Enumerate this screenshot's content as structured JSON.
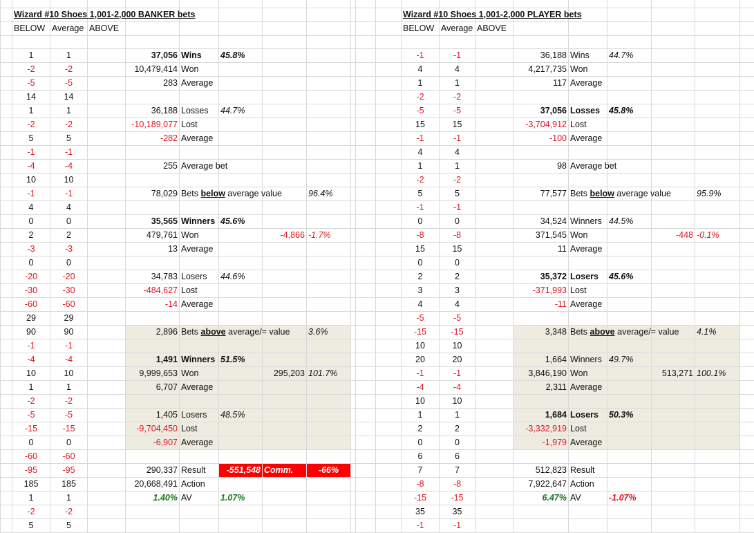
{
  "colors": {
    "negative": "#e0141e",
    "positive_av": "#1b7a1b",
    "shade": "#eeece1",
    "commission_fill": "#ff0000"
  },
  "banker": {
    "title": "Wizard #10 Shoes 1,001-2,000 BANKER bets",
    "headers": [
      "BELOW",
      "Average",
      "ABOVE"
    ],
    "below": [
      "1",
      "-2",
      "-5",
      "14",
      "1",
      "-2",
      "5",
      "-1",
      "-4",
      "10",
      "-1",
      "4",
      "0",
      "2",
      "-3",
      "0",
      "-20",
      "-30",
      "-60",
      "29",
      "90",
      "-1",
      "-4",
      "10",
      "1",
      "-2",
      "-5",
      "-15",
      "0",
      "-60",
      "-95",
      "185",
      "1",
      "-2",
      "5"
    ],
    "average": [
      "1",
      "-2",
      "-5",
      "14",
      "1",
      "-2",
      "5",
      "-1",
      "-4",
      "10",
      "-1",
      "4",
      "0",
      "2",
      "-3",
      "0",
      "-20",
      "-30",
      "-60",
      "29",
      "90",
      "-1",
      "-4",
      "10",
      "1",
      "-2",
      "-5",
      "-15",
      "0",
      "-60",
      "-95",
      "185",
      "1",
      "-2",
      "5"
    ],
    "stats": [
      {
        "num": "37,056",
        "label": "Wins",
        "pct": "45.8%",
        "bold": true
      },
      {
        "num": "10,479,414",
        "label": "Won"
      },
      {
        "num": "283",
        "label": "Average"
      },
      {},
      {
        "num": "36,188",
        "label": "Losses",
        "pct": "44.7%"
      },
      {
        "num": "-10,189,077",
        "label": "Lost"
      },
      {
        "num": "-282",
        "label": "Average"
      },
      {},
      {
        "num": "255",
        "label": "Average bet"
      },
      {},
      {
        "num": "78,029",
        "label": "Bets ",
        "label_u": "below",
        "label_post": " average value",
        "far_pct": "96.4%"
      },
      {},
      {
        "num": "35,565",
        "label": "Winners",
        "pct": "45.6%",
        "bold": true
      },
      {
        "num": "479,761",
        "label": "Won",
        "extra_num": "-4,866",
        "far_pct": "-1.7%"
      },
      {
        "num": "13",
        "label": "Average"
      },
      {},
      {
        "num": "34,783",
        "label": "Losers",
        "pct": "44.6%"
      },
      {
        "num": "-484,627",
        "label": "Lost"
      },
      {
        "num": "-14",
        "label": "Average"
      },
      {},
      {
        "num": "2,896",
        "label": "Bets ",
        "label_u": "above",
        "label_post": " average/= value",
        "far_pct": "3.6%",
        "shade": true
      },
      {
        "shade": true
      },
      {
        "num": "1,491",
        "label": "Winners",
        "pct": "51.5%",
        "bold": true,
        "shade": true
      },
      {
        "num": "9,999,653",
        "label": "Won",
        "extra_num": "295,203",
        "far_pct": "101.7%",
        "shade": true
      },
      {
        "num": "6,707",
        "label": "Average",
        "shade": true
      },
      {
        "shade": true
      },
      {
        "num": "1,405",
        "label": "Losers",
        "pct": "48.5%",
        "shade": true
      },
      {
        "num": "-9,704,450",
        "label": "Lost",
        "shade": true
      },
      {
        "num": "-6,907",
        "label": "Average",
        "shade": true
      },
      {},
      {
        "num": "290,337",
        "label": "Result",
        "comm_value": "-551,548",
        "comm_label": "Comm.",
        "comm_pct": "-66%"
      },
      {
        "num": "20,668,491",
        "label": "Action"
      },
      {
        "num": "1.40%",
        "label": "AV",
        "pct": "1.07%",
        "av": true
      }
    ]
  },
  "player": {
    "title": "Wizard #10 Shoes 1,001-2,000 PLAYER bets",
    "headers": [
      "BELOW",
      "Average",
      "ABOVE"
    ],
    "below": [
      "-1",
      "4",
      "1",
      "-2",
      "-5",
      "15",
      "-1",
      "4",
      "1",
      "-2",
      "5",
      "-1",
      "0",
      "-8",
      "15",
      "0",
      "2",
      "3",
      "4",
      "-5",
      "-15",
      "10",
      "20",
      "-1",
      "-4",
      "10",
      "1",
      "2",
      "0",
      "6",
      "7",
      "-8",
      "-15",
      "35",
      "-1"
    ],
    "average": [
      "-1",
      "4",
      "1",
      "-2",
      "-5",
      "15",
      "-1",
      "4",
      "1",
      "-2",
      "5",
      "-1",
      "0",
      "-8",
      "15",
      "0",
      "2",
      "3",
      "4",
      "-5",
      "-15",
      "10",
      "20",
      "-1",
      "-4",
      "10",
      "1",
      "2",
      "0",
      "6",
      "7",
      "-8",
      "-15",
      "35",
      "-1"
    ],
    "stats": [
      {
        "num": "36,188",
        "label": "Wins",
        "pct": "44.7%"
      },
      {
        "num": "4,217,735",
        "label": "Won"
      },
      {
        "num": "117",
        "label": "Average"
      },
      {},
      {
        "num": "37,056",
        "label": "Losses",
        "pct": "45.8%",
        "bold": true
      },
      {
        "num": "-3,704,912",
        "label": "Lost"
      },
      {
        "num": "-100",
        "label": "Average"
      },
      {},
      {
        "num": "98",
        "label": "Average bet"
      },
      {},
      {
        "num": "77,577",
        "label": "Bets ",
        "label_u": "below",
        "label_post": " average value",
        "far_pct": "95.9%"
      },
      {},
      {
        "num": "34,524",
        "label": "Winners",
        "pct": "44.5%"
      },
      {
        "num": "371,545",
        "label": "Won",
        "extra_num": "-448",
        "far_pct": "-0.1%"
      },
      {
        "num": "11",
        "label": "Average"
      },
      {},
      {
        "num": "35,372",
        "label": "Losers",
        "pct": "45.6%",
        "bold": true
      },
      {
        "num": "-371,993",
        "label": "Lost"
      },
      {
        "num": "-11",
        "label": "Average"
      },
      {},
      {
        "num": "3,348",
        "label": "Bets ",
        "label_u": "above",
        "label_post": " average/= value",
        "far_pct": "4.1%",
        "shade": true
      },
      {
        "shade": true
      },
      {
        "num": "1,664",
        "label": "Winners",
        "pct": "49.7%",
        "shade": true
      },
      {
        "num": "3,846,190",
        "label": "Won",
        "extra_num": "513,271",
        "far_pct": "100.1%",
        "shade": true
      },
      {
        "num": "2,311",
        "label": "Average",
        "shade": true
      },
      {
        "shade": true
      },
      {
        "num": "1,684",
        "label": "Losers",
        "pct": "50.3%",
        "bold": true,
        "shade": true
      },
      {
        "num": "-3,332,919",
        "label": "Lost",
        "shade": true
      },
      {
        "num": "-1,979",
        "label": "Average",
        "shade": true
      },
      {},
      {
        "num": "512,823",
        "label": "Result"
      },
      {
        "num": "7,922,647",
        "label": "Action"
      },
      {
        "num": "6.47%",
        "label": "AV",
        "pct": "-1.07%",
        "av": true
      }
    ]
  }
}
